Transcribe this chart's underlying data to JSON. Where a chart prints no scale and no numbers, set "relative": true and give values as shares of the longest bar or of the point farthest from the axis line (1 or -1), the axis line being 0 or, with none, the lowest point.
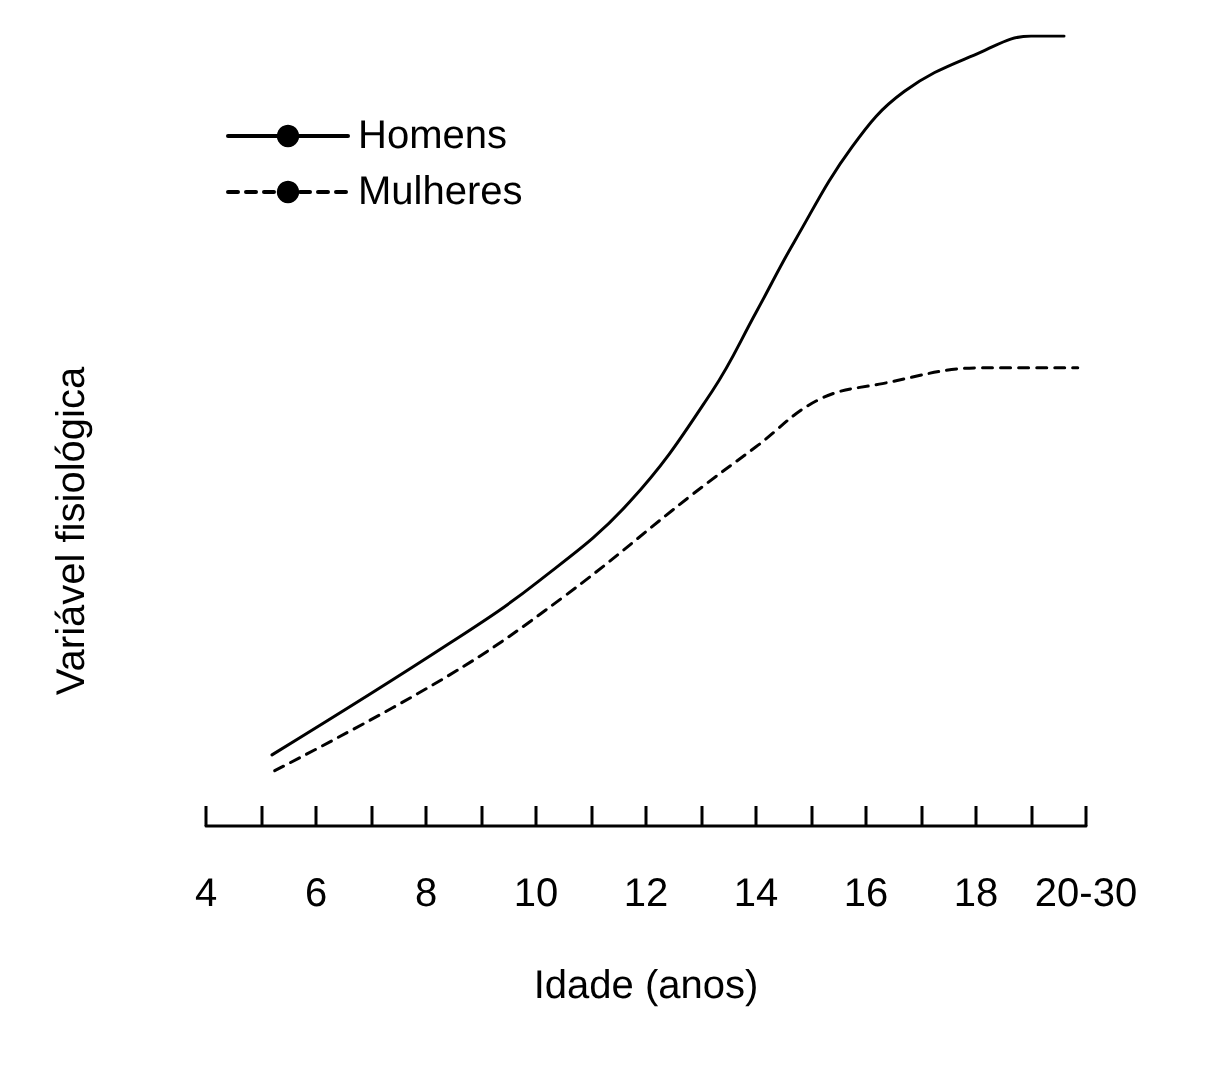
{
  "chart_data": {
    "type": "line",
    "xlabel": "Idade (anos)",
    "ylabel": "Variável fisiológica",
    "relative": true,
    "xlim": [
      4,
      20
    ],
    "xticks": [
      4,
      {
        "value": 5,
        "label": null
      },
      6,
      {
        "value": 7,
        "label": null
      },
      8,
      {
        "value": 9,
        "label": null
      },
      10,
      {
        "value": 11,
        "label": null
      },
      12,
      {
        "value": 13,
        "label": null
      },
      14,
      {
        "value": 15,
        "label": null
      },
      16,
      {
        "value": 17,
        "label": null
      },
      18,
      {
        "value": 19,
        "label": null
      },
      {
        "value": 20,
        "label": "20-30"
      }
    ],
    "series": [
      {
        "name": "Homens",
        "color": "#000000",
        "line_style": "solid",
        "x": [
          5.2,
          8.4,
          10.05,
          11.7,
          13.2,
          14.0,
          14.7,
          15.75,
          16.7,
          18.1,
          19.0,
          19.6
        ],
        "values": [
          0.09,
          0.23,
          0.31,
          0.41,
          0.55,
          0.65,
          0.74,
          0.86,
          0.93,
          0.98,
          1.0,
          1.0
        ]
      },
      {
        "name": "Mulheres",
        "color": "#000000",
        "line_style": "dashed",
        "x": [
          5.25,
          8.4,
          10.5,
          12.85,
          14.0,
          15.15,
          16.3,
          18.1,
          19.85
        ],
        "values": [
          0.07,
          0.19,
          0.29,
          0.42,
          0.48,
          0.54,
          0.56,
          0.58,
          0.58
        ]
      }
    ],
    "legend": "top left",
    "grid": false,
    "marker": "none"
  }
}
